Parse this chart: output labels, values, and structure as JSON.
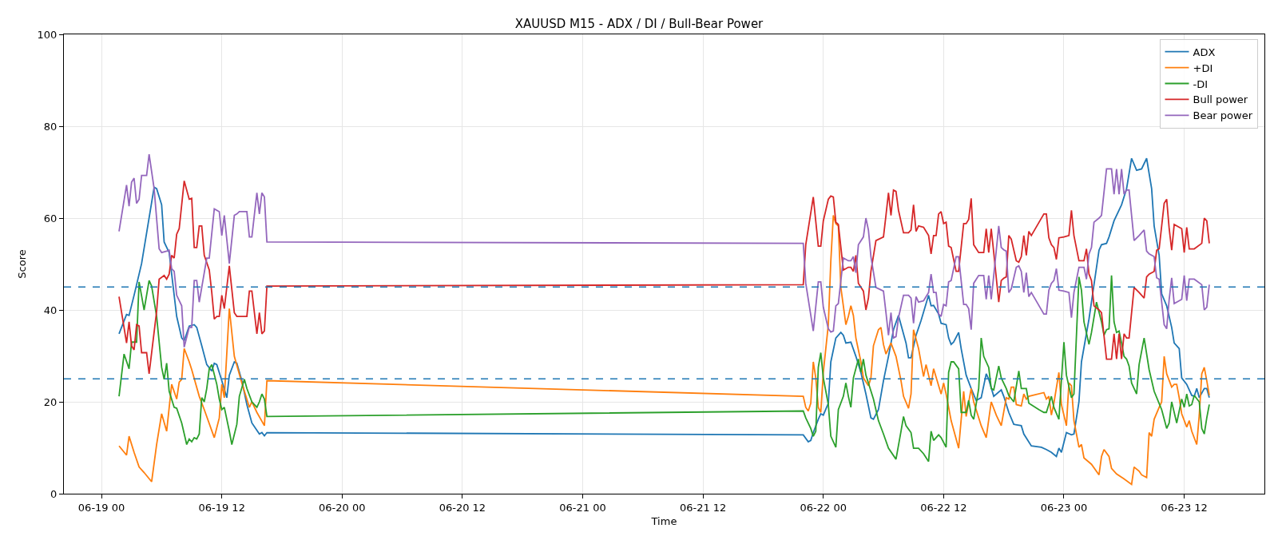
{
  "chart_data": {
    "type": "line",
    "title": "XAUUSD M15 - ADX / DI / Bull-Bear Power",
    "xlabel": "Time",
    "ylabel": "Score",
    "xlim": [
      "--06-18T20:15",
      "--06-23T20:00"
    ],
    "xticks": [
      {
        "value": "--06-19T00:00",
        "label": "06-19 00"
      },
      {
        "value": "--06-19T12:00",
        "label": "06-19 12"
      },
      {
        "value": "--06-20T00:00",
        "label": "06-20 00"
      },
      {
        "value": "--06-20T12:00",
        "label": "06-20 12"
      },
      {
        "value": "--06-21T00:00",
        "label": "06-21 00"
      },
      {
        "value": "--06-21T12:00",
        "label": "06-21 12"
      },
      {
        "value": "--06-22T00:00",
        "label": "06-22 00"
      },
      {
        "value": "--06-22T12:00",
        "label": "06-22 12"
      },
      {
        "value": "--06-23T00:00",
        "label": "06-23 00"
      },
      {
        "value": "--06-23T12:00",
        "label": "06-23 12"
      }
    ],
    "ylim": [
      0,
      100
    ],
    "yticks": [
      0,
      20,
      40,
      60,
      80,
      100
    ],
    "grid": true,
    "legend": "top right",
    "ref_lines": [
      {
        "axis": "y",
        "value": 45,
        "color": "#1f77b4",
        "line_style": "dashed"
      },
      {
        "axis": "y",
        "value": 25,
        "color": "#1f77b4",
        "line_style": "dashed"
      }
    ],
    "series": [
      {
        "name": "ADX",
        "color": "#1f77b4",
        "x": [
          "--06-19T01:45",
          "--06-19T02:30",
          "--06-19T02:45",
          "--06-19T03:15",
          "--06-19T04:00",
          "--06-19T05:15",
          "--06-19T05:30",
          "--06-19T06:00",
          "--06-19T06:15",
          "--06-19T06:45",
          "--06-19T07:00",
          "--06-19T07:30",
          "--06-19T08:00",
          "--06-19T08:15",
          "--06-19T08:45",
          "--06-19T09:15",
          "--06-19T09:30",
          "--06-19T10:00",
          "--06-19T10:30",
          "--06-19T11:00",
          "--06-19T11:15",
          "--06-19T11:30",
          "--06-19T12:00",
          "--06-19T12:30",
          "--06-19T12:45",
          "--06-19T13:15",
          "--06-19T13:30",
          "--06-19T14:00",
          "--06-19T14:30",
          "--06-19T15:00",
          "--06-19T15:45",
          "--06-19T16:00",
          "--06-19T16:15",
          "--06-19T16:30",
          "--06-21T22:00",
          "--06-21T22:30",
          "--06-21T22:45",
          "--06-21T23:00",
          "--06-21T23:30",
          "--06-21T23:45",
          "--06-22T00:00",
          "--06-22T00:30",
          "--06-22T00:45",
          "--06-22T01:15",
          "--06-22T01:45",
          "--06-22T02:00",
          "--06-22T02:15",
          "--06-22T02:45",
          "--06-22T03:15",
          "--06-22T03:45",
          "--06-22T04:15",
          "--06-22T04:45",
          "--06-22T05:00",
          "--06-22T05:30",
          "--06-22T06:00",
          "--06-22T06:30",
          "--06-22T07:00",
          "--06-22T07:30",
          "--06-22T07:45",
          "--06-22T08:15",
          "--06-22T08:30",
          "--06-22T08:45",
          "--06-22T09:15",
          "--06-22T09:45",
          "--06-22T10:30",
          "--06-22T10:45",
          "--06-22T11:00",
          "--06-22T11:30",
          "--06-22T11:45",
          "--06-22T12:15",
          "--06-22T12:30",
          "--06-22T12:45",
          "--06-22T13:00",
          "--06-22T13:30",
          "--06-22T13:45",
          "--06-22T14:15",
          "--06-22T14:45",
          "--06-22T15:15",
          "--06-22T15:45",
          "--06-22T16:15",
          "--06-22T16:30",
          "--06-22T17:00",
          "--06-22T17:45",
          "--06-22T18:00",
          "--06-22T18:30",
          "--06-22T19:00",
          "--06-22T19:45",
          "--06-22T20:00",
          "--06-22T20:45",
          "--06-22T21:45",
          "--06-22T22:15",
          "--06-22T22:45",
          "--06-22T23:15",
          "--06-22T23:30",
          "--06-22T23:45",
          "--06-23T00:15",
          "--06-23T00:45",
          "--06-23T01:00",
          "--06-23T01:30",
          "--06-23T01:45",
          "--06-23T02:30",
          "--06-23T03:00",
          "--06-23T03:30",
          "--06-23T03:45",
          "--06-23T04:15",
          "--06-23T04:30",
          "--06-23T05:00",
          "--06-23T05:45",
          "--06-23T06:15",
          "--06-23T06:45",
          "--06-23T07:15",
          "--06-23T07:45",
          "--06-23T08:15",
          "--06-23T08:45",
          "--06-23T09:00",
          "--06-23T09:30",
          "--06-23T09:45",
          "--06-23T10:15",
          "--06-23T10:45",
          "--06-23T11:00",
          "--06-23T11:30",
          "--06-23T11:45",
          "--06-23T12:15",
          "--06-23T12:45",
          "--06-23T13:00",
          "--06-23T13:15",
          "--06-23T13:30",
          "--06-23T14:00",
          "--06-23T14:15",
          "--06-23T14:30"
        ],
        "values": [
          34.8,
          39.0,
          38.8,
          43.2,
          50.1,
          66.7,
          66.4,
          62.9,
          54.8,
          52.5,
          47.8,
          38.6,
          33.9,
          33.3,
          36.5,
          36.8,
          36.2,
          32.2,
          28.1,
          26.7,
          28.4,
          28.1,
          24.6,
          20.9,
          25.8,
          28.7,
          28.4,
          24.6,
          19.4,
          15.4,
          13.0,
          13.3,
          12.6,
          13.3,
          12.8,
          11.3,
          11.6,
          13.3,
          16.2,
          17.4,
          17.1,
          19.7,
          28.7,
          33.9,
          35.1,
          34.5,
          32.8,
          33.0,
          29.9,
          26.4,
          21.7,
          16.5,
          16.2,
          18.3,
          24.6,
          29.9,
          35.7,
          38.8,
          36.8,
          32.8,
          29.6,
          29.6,
          34.5,
          37.7,
          43.2,
          40.9,
          41.0,
          39.1,
          37.1,
          36.8,
          33.9,
          32.5,
          33.0,
          35.1,
          31.6,
          25.8,
          22.9,
          20.3,
          20.9,
          26.1,
          24.9,
          21.2,
          22.6,
          21.2,
          17.7,
          15.1,
          14.8,
          13.0,
          10.4,
          10.1,
          9.6,
          9.0,
          8.1,
          9.9,
          9.0,
          13.3,
          12.8,
          13.0,
          20.0,
          28.7,
          38.0,
          45.5,
          53.0,
          54.2,
          54.5,
          55.9,
          59.4,
          62.9,
          66.4,
          73.0,
          70.4,
          70.7,
          73.0,
          66.4,
          58.3,
          51.9,
          43.5,
          40.9,
          36.2,
          32.8,
          31.6,
          25.2,
          23.8,
          21.4,
          21.2,
          22.9,
          20.9,
          22.9,
          22.9,
          20.9
        ]
      },
      {
        "name": "+DI",
        "color": "#ff7f0e",
        "x": [
          "--06-19T01:45",
          "--06-19T02:30",
          "--06-19T02:45",
          "--06-19T03:15",
          "--06-19T03:45",
          "--06-19T04:15",
          "--06-19T05:00",
          "--06-19T05:30",
          "--06-19T06:00",
          "--06-19T06:30",
          "--06-19T07:00",
          "--06-19T07:30",
          "--06-19T07:45",
          "--06-19T08:00",
          "--06-19T08:15",
          "--06-19T08:45",
          "--06-19T09:00",
          "--06-19T09:45",
          "--06-19T10:15",
          "--06-19T11:15",
          "--06-19T11:45",
          "--06-19T12:00",
          "--06-19T12:15",
          "--06-19T12:45",
          "--06-19T13:15",
          "--06-19T14:00",
          "--06-19T14:45",
          "--06-19T15:00",
          "--06-19T15:30",
          "--06-19T16:15",
          "--06-19T16:30",
          "--06-21T22:00",
          "--06-21T22:15",
          "--06-21T22:30",
          "--06-21T22:45",
          "--06-21T23:00",
          "--06-21T23:15",
          "--06-21T23:30",
          "--06-21T23:45",
          "--06-22T00:00",
          "--06-22T00:30",
          "--06-22T00:45",
          "--06-22T01:00",
          "--06-22T01:15",
          "--06-22T01:30",
          "--06-22T01:45",
          "--06-22T02:15",
          "--06-22T02:30",
          "--06-22T02:45",
          "--06-22T03:00",
          "--06-22T03:15",
          "--06-22T03:45",
          "--06-22T04:00",
          "--06-22T04:30",
          "--06-22T04:45",
          "--06-22T05:00",
          "--06-22T05:30",
          "--06-22T05:45",
          "--06-22T06:00",
          "--06-22T06:15",
          "--06-22T06:45",
          "--06-22T07:15",
          "--06-22T07:45",
          "--06-22T08:00",
          "--06-22T08:30",
          "--06-22T08:45",
          "--06-22T09:00",
          "--06-22T09:30",
          "--06-22T10:00",
          "--06-22T10:15",
          "--06-22T10:45",
          "--06-22T11:00",
          "--06-22T11:45",
          "--06-22T12:00",
          "--06-22T12:15",
          "--06-22T12:45",
          "--06-22T13:30",
          "--06-22T14:00",
          "--06-22T14:15",
          "--06-22T14:45",
          "--06-22T15:00",
          "--06-22T15:45",
          "--06-22T16:15",
          "--06-22T16:45",
          "--06-22T17:15",
          "--06-22T17:45",
          "--06-22T18:15",
          "--06-22T18:30",
          "--06-22T18:45",
          "--06-22T19:00",
          "--06-22T19:15",
          "--06-22T19:45",
          "--06-22T20:00",
          "--06-22T20:15",
          "--06-22T20:30",
          "--06-22T22:00",
          "--06-22T22:15",
          "--06-22T22:30",
          "--06-22T22:45",
          "--06-22T23:00",
          "--06-22T23:30",
          "--06-22T23:45",
          "--06-23T00:15",
          "--06-23T00:30",
          "--06-23T00:45",
          "--06-23T01:00",
          "--06-23T01:30",
          "--06-23T01:45",
          "--06-23T02:00",
          "--06-23T02:45",
          "--06-23T03:30",
          "--06-23T03:45",
          "--06-23T04:00",
          "--06-23T04:30",
          "--06-23T04:45",
          "--06-23T05:15",
          "--06-23T06:00",
          "--06-23T06:45",
          "--06-23T07:00",
          "--06-23T07:30",
          "--06-23T07:45",
          "--06-23T08:15",
          "--06-23T08:30",
          "--06-23T08:45",
          "--06-23T09:00",
          "--06-23T09:30",
          "--06-23T09:45",
          "--06-23T10:00",
          "--06-23T10:15",
          "--06-23T10:45",
          "--06-23T11:00",
          "--06-23T11:15",
          "--06-23T11:30",
          "--06-23T11:45",
          "--06-23T12:15",
          "--06-23T12:30",
          "--06-23T12:45",
          "--06-23T13:15",
          "--06-23T13:30",
          "--06-23T13:45",
          "--06-23T14:00",
          "--06-23T14:15",
          "--06-23T14:30"
        ],
        "values": [
          10.4,
          8.4,
          12.5,
          9.0,
          5.8,
          4.6,
          2.6,
          10.7,
          17.4,
          13.6,
          23.8,
          20.6,
          24.3,
          24.9,
          31.6,
          28.7,
          27.0,
          21.2,
          18.3,
          12.2,
          16.5,
          23.8,
          20.9,
          40.3,
          29.9,
          24.1,
          18.8,
          20.0,
          17.7,
          14.8,
          24.6,
          21.2,
          18.8,
          18.0,
          19.7,
          28.7,
          25.2,
          18.8,
          17.7,
          26.4,
          36.8,
          50.7,
          60.6,
          58.8,
          58.3,
          44.9,
          36.8,
          38.6,
          40.9,
          38.8,
          33.9,
          28.7,
          25.2,
          23.5,
          25.2,
          32.2,
          35.7,
          36.2,
          32.5,
          30.4,
          32.8,
          29.9,
          24.6,
          21.2,
          18.6,
          21.7,
          35.7,
          31.6,
          25.5,
          28.1,
          23.5,
          27.2,
          21.7,
          24.1,
          21.7,
          15.9,
          9.9,
          22.3,
          16.8,
          22.9,
          20.0,
          14.8,
          12.2,
          20.0,
          17.1,
          14.8,
          20.9,
          20.6,
          23.2,
          23.2,
          19.4,
          19.1,
          21.7,
          20.6,
          21.2,
          22.0,
          20.6,
          21.2,
          17.1,
          19.7,
          26.4,
          19.4,
          14.8,
          24.1,
          23.5,
          15.9,
          10.1,
          10.7,
          7.8,
          6.4,
          4.1,
          8.1,
          9.6,
          8.1,
          5.5,
          4.3,
          3.2,
          2.0,
          5.8,
          4.9,
          4.1,
          3.5,
          13.3,
          12.5,
          16.2,
          18.8,
          20.0,
          29.9,
          26.1,
          23.2,
          23.8,
          23.8,
          20.9,
          17.4,
          14.5,
          15.9,
          13.6,
          10.7,
          17.1,
          26.1,
          27.5,
          24.6,
          21.4
        ]
      },
      {
        "name": "-DI",
        "color": "#2ca02c",
        "x": [
          "--06-19T01:45",
          "--06-19T02:15",
          "--06-19T02:45",
          "--06-19T03:00",
          "--06-19T03:30",
          "--06-19T03:45",
          "--06-19T04:15",
          "--06-19T04:45",
          "--06-19T05:00",
          "--06-19T05:30",
          "--06-19T06:00",
          "--06-19T06:15",
          "--06-19T06:30",
          "--06-19T06:45",
          "--06-19T07:15",
          "--06-19T07:30",
          "--06-19T08:00",
          "--06-19T08:30",
          "--06-19T08:45",
          "--06-19T09:00",
          "--06-19T09:15",
          "--06-19T09:30",
          "--06-19T09:45",
          "--06-19T10:00",
          "--06-19T10:15",
          "--06-19T10:30",
          "--06-19T10:45",
          "--06-19T11:00",
          "--06-19T11:30",
          "--06-19T11:45",
          "--06-19T12:00",
          "--06-19T12:15",
          "--06-19T12:45",
          "--06-19T13:00",
          "--06-19T13:30",
          "--06-19T13:45",
          "--06-19T14:15",
          "--06-19T14:30",
          "--06-19T15:00",
          "--06-19T15:30",
          "--06-19T15:45",
          "--06-19T16:00",
          "--06-19T16:15",
          "--06-19T16:30",
          "--06-21T22:00",
          "--06-21T22:15",
          "--06-21T22:45",
          "--06-21T23:00",
          "--06-21T23:15",
          "--06-21T23:30",
          "--06-21T23:45",
          "--06-22T00:00",
          "--06-22T00:30",
          "--06-22T00:45",
          "--06-22T01:15",
          "--06-22T01:30",
          "--06-22T02:00",
          "--06-22T02:15",
          "--06-22T02:30",
          "--06-22T02:45",
          "--06-22T03:00",
          "--06-22T03:30",
          "--06-22T03:45",
          "--06-22T04:00",
          "--06-22T04:15",
          "--06-22T04:30",
          "--06-22T05:00",
          "--06-22T05:30",
          "--06-22T06:00",
          "--06-22T06:30",
          "--06-22T07:15",
          "--06-22T07:45",
          "--06-22T08:00",
          "--06-22T08:15",
          "--06-22T08:45",
          "--06-22T09:00",
          "--06-22T09:30",
          "--06-22T10:00",
          "--06-22T10:30",
          "--06-22T10:45",
          "--06-22T11:00",
          "--06-22T11:30",
          "--06-22T11:45",
          "--06-22T12:15",
          "--06-22T12:30",
          "--06-22T12:45",
          "--06-22T13:00",
          "--06-22T13:30",
          "--06-22T13:45",
          "--06-22T14:15",
          "--06-22T14:30",
          "--06-22T14:45",
          "--06-22T15:00",
          "--06-22T15:30",
          "--06-22T15:45",
          "--06-22T16:00",
          "--06-22T16:30",
          "--06-22T16:45",
          "--06-22T17:00",
          "--06-22T17:30",
          "--06-22T17:45",
          "--06-22T18:15",
          "--06-22T18:30",
          "--06-22T19:00",
          "--06-22T19:30",
          "--06-22T19:45",
          "--06-22T20:15",
          "--06-22T20:30",
          "--06-22T21:30",
          "--06-22T22:00",
          "--06-22T22:15",
          "--06-22T22:45",
          "--06-22T23:00",
          "--06-22T23:30",
          "--06-23T00:00",
          "--06-23T00:15",
          "--06-23T00:45",
          "--06-23T01:00",
          "--06-23T01:30",
          "--06-23T01:45",
          "--06-23T02:00",
          "--06-23T02:30",
          "--06-23T02:45",
          "--06-23T03:15",
          "--06-23T03:45",
          "--06-23T04:00",
          "--06-23T04:15",
          "--06-23T04:30",
          "--06-23T04:45",
          "--06-23T05:00",
          "--06-23T05:15",
          "--06-23T05:30",
          "--06-23T05:45",
          "--06-23T06:00",
          "--06-23T06:15",
          "--06-23T06:30",
          "--06-23T06:45",
          "--06-23T07:15",
          "--06-23T07:30",
          "--06-23T08:00",
          "--06-23T08:30",
          "--06-23T09:00",
          "--06-23T09:45",
          "--06-23T10:15",
          "--06-23T10:30",
          "--06-23T10:45",
          "--06-23T11:15",
          "--06-23T11:45",
          "--06-23T12:00",
          "--06-23T12:15",
          "--06-23T12:30",
          "--06-23T12:45",
          "--06-23T13:00",
          "--06-23T13:30",
          "--06-23T13:45",
          "--06-23T14:00",
          "--06-23T14:15",
          "--06-23T14:30"
        ],
        "values": [
          21.2,
          30.4,
          27.2,
          33.0,
          33.0,
          46.1,
          40.0,
          46.4,
          45.2,
          38.6,
          27.5,
          24.9,
          28.4,
          22.3,
          18.8,
          18.6,
          15.4,
          10.7,
          11.9,
          11.3,
          12.2,
          11.9,
          13.0,
          20.9,
          20.0,
          22.9,
          27.2,
          28.1,
          23.8,
          20.6,
          18.3,
          18.8,
          13.6,
          10.7,
          15.1,
          21.2,
          24.9,
          22.9,
          20.0,
          18.8,
          20.0,
          21.7,
          20.6,
          16.8,
          18.0,
          16.5,
          14.2,
          12.5,
          13.6,
          27.5,
          30.7,
          25.2,
          19.4,
          12.5,
          10.1,
          18.3,
          21.2,
          24.1,
          21.2,
          18.8,
          25.2,
          29.3,
          26.4,
          29.3,
          25.8,
          24.1,
          20.6,
          15.9,
          13.0,
          9.9,
          7.5,
          13.6,
          16.8,
          14.8,
          13.3,
          9.9,
          9.9,
          8.7,
          7.0,
          13.6,
          11.6,
          12.8,
          12.2,
          10.1,
          26.4,
          28.7,
          28.7,
          27.2,
          17.7,
          17.7,
          20.3,
          17.1,
          16.2,
          22.9,
          33.9,
          29.9,
          27.5,
          22.9,
          22.6,
          27.8,
          25.2,
          22.9,
          21.4,
          20.0,
          26.7,
          22.9,
          22.9,
          19.7,
          18.3,
          17.7,
          17.7,
          21.2,
          18.8,
          16.2,
          33.0,
          25.8,
          20.9,
          21.7,
          47.2,
          44.3,
          37.4,
          32.5,
          35.1,
          41.7,
          37.4,
          34.5,
          35.7,
          35.9,
          47.5,
          37.4,
          35.1,
          35.4,
          32.8,
          29.9,
          29.3,
          27.8,
          24.1,
          21.7,
          28.1,
          33.9,
          27.0,
          22.3,
          18.3,
          14.2,
          15.4,
          20.0,
          15.4,
          20.6,
          18.8,
          21.7,
          19.1,
          19.4,
          21.4,
          20.0,
          14.2,
          13.0,
          16.5,
          19.4
        ]
      },
      {
        "name": "Bull power",
        "color": "#d62728",
        "x": [
          "--06-19T01:45",
          "--06-19T02:30",
          "--06-19T02:45",
          "--06-19T03:00",
          "--06-19T03:15",
          "--06-19T03:30",
          "--06-19T03:45",
          "--06-19T04:00",
          "--06-19T04:30",
          "--06-19T04:45",
          "--06-19T05:30",
          "--06-19T05:45",
          "--06-19T06:15",
          "--06-19T06:30",
          "--06-19T06:45",
          "--06-19T07:00",
          "--06-19T07:15",
          "--06-19T07:30",
          "--06-19T07:45",
          "--06-19T08:15",
          "--06-19T08:45",
          "--06-19T09:00",
          "--06-19T09:15",
          "--06-19T09:30",
          "--06-19T09:45",
          "--06-19T10:00",
          "--06-19T10:15",
          "--06-19T10:45",
          "--06-19T11:00",
          "--06-19T11:15",
          "--06-19T11:30",
          "--06-19T11:45",
          "--06-19T12:00",
          "--06-19T12:15",
          "--06-19T12:45",
          "--06-19T13:15",
          "--06-19T13:30",
          "--06-19T14:30",
          "--06-19T14:45",
          "--06-19T15:00",
          "--06-19T15:30",
          "--06-19T15:45",
          "--06-19T16:00",
          "--06-19T16:15",
          "--06-19T16:30",
          "--06-21T22:00",
          "--06-21T22:15",
          "--06-21T23:00",
          "--06-21T23:30",
          "--06-21T23:45",
          "--06-22T00:00",
          "--06-22T00:30",
          "--06-22T00:45",
          "--06-22T01:00",
          "--06-22T01:15",
          "--06-22T01:30",
          "--06-22T02:00",
          "--06-22T02:30",
          "--06-22T02:45",
          "--06-22T03:00",
          "--06-22T03:15",
          "--06-22T03:30",
          "--06-22T04:00",
          "--06-22T04:15",
          "--06-22T04:30",
          "--06-22T04:45",
          "--06-22T05:15",
          "--06-22T06:00",
          "--06-22T06:15",
          "--06-22T06:30",
          "--06-22T06:45",
          "--06-22T07:00",
          "--06-22T07:15",
          "--06-22T07:30",
          "--06-22T08:00",
          "--06-22T08:30",
          "--06-22T08:45",
          "--06-22T09:00",
          "--06-22T09:15",
          "--06-22T09:30",
          "--06-22T10:00",
          "--06-22T10:30",
          "--06-22T10:45",
          "--06-22T11:00",
          "--06-22T11:15",
          "--06-22T11:30",
          "--06-22T11:45",
          "--06-22T12:00",
          "--06-22T12:15",
          "--06-22T12:30",
          "--06-22T12:45",
          "--06-22T13:15",
          "--06-22T13:30",
          "--06-22T14:00",
          "--06-22T14:15",
          "--06-22T14:30",
          "--06-22T14:45",
          "--06-22T15:00",
          "--06-22T15:30",
          "--06-22T16:00",
          "--06-22T16:15",
          "--06-22T16:30",
          "--06-22T16:45",
          "--06-22T17:00",
          "--06-22T17:30",
          "--06-22T17:45",
          "--06-22T18:00",
          "--06-22T18:15",
          "--06-22T18:30",
          "--06-22T18:45",
          "--06-22T19:15",
          "--06-22T19:30",
          "--06-22T19:45",
          "--06-22T20:00",
          "--06-22T20:15",
          "--06-22T20:30",
          "--06-22T20:45",
          "--06-22T22:00",
          "--06-22T22:15",
          "--06-22T22:30",
          "--06-22T22:45",
          "--06-22T23:00",
          "--06-22T23:15",
          "--06-22T23:30",
          "--06-23T00:00",
          "--06-23T00:30",
          "--06-23T00:45",
          "--06-23T01:00",
          "--06-23T01:30",
          "--06-23T02:00",
          "--06-23T02:15",
          "--06-23T02:30",
          "--06-23T02:45",
          "--06-23T03:00",
          "--06-23T03:30",
          "--06-23T03:45",
          "--06-23T04:15",
          "--06-23T04:45",
          "--06-23T05:00",
          "--06-23T05:15",
          "--06-23T05:30",
          "--06-23T05:45",
          "--06-23T06:00",
          "--06-23T06:15",
          "--06-23T06:30",
          "--06-23T07:00",
          "--06-23T07:30",
          "--06-23T08:00",
          "--06-23T08:15",
          "--06-23T08:30",
          "--06-23T09:00",
          "--06-23T09:15",
          "--06-23T09:30",
          "--06-23T10:00",
          "--06-23T10:15",
          "--06-23T10:30",
          "--06-23T10:45",
          "--06-23T11:00",
          "--06-23T11:30",
          "--06-23T11:45",
          "--06-23T12:00",
          "--06-23T12:15",
          "--06-23T12:30",
          "--06-23T13:00",
          "--06-23T13:45",
          "--06-23T14:00",
          "--06-23T14:15",
          "--06-23T14:30"
        ],
        "values": [
          42.9,
          32.8,
          37.4,
          32.2,
          31.3,
          36.8,
          36.5,
          30.7,
          30.7,
          26.1,
          39.7,
          46.7,
          47.5,
          46.7,
          47.8,
          51.9,
          51.3,
          56.5,
          57.7,
          68.1,
          64.1,
          64.3,
          53.6,
          53.6,
          58.3,
          58.3,
          51.9,
          48.7,
          43.8,
          38.0,
          38.6,
          38.6,
          43.2,
          40.3,
          49.6,
          39.4,
          38.6,
          38.6,
          44.1,
          44.1,
          34.8,
          39.4,
          34.8,
          35.4,
          45.2,
          45.5,
          54.2,
          64.6,
          53.9,
          53.9,
          59.4,
          64.1,
          64.8,
          64.6,
          59.1,
          58.6,
          48.7,
          49.3,
          49.3,
          48.4,
          51.9,
          45.8,
          44.1,
          40.0,
          42.6,
          48.4,
          55.1,
          55.9,
          60.6,
          65.5,
          60.6,
          66.1,
          65.8,
          61.7,
          56.8,
          56.8,
          57.4,
          62.9,
          57.1,
          58.3,
          58.0,
          56.2,
          52.2,
          56.2,
          56.2,
          60.9,
          61.4,
          58.8,
          59.1,
          53.9,
          53.6,
          48.4,
          48.4,
          58.8,
          58.8,
          59.7,
          64.3,
          54.2,
          52.5,
          52.5,
          57.7,
          52.5,
          57.7,
          52.5,
          41.7,
          46.4,
          46.9,
          47.2,
          56.2,
          55.4,
          50.7,
          50.4,
          51.6,
          56.2,
          51.9,
          57.1,
          56.2,
          60.9,
          60.9,
          55.7,
          54.2,
          53.6,
          51.0,
          55.7,
          55.9,
          56.2,
          61.7,
          56.2,
          50.7,
          50.7,
          53.3,
          47.8,
          46.4,
          40.9,
          40.0,
          39.4,
          29.3,
          29.3,
          34.8,
          29.3,
          34.8,
          29.3,
          34.8,
          33.9,
          33.9,
          44.9,
          43.8,
          42.6,
          47.2,
          47.8,
          48.4,
          53.0,
          53.3,
          63.2,
          64.1,
          57.7,
          53.0,
          58.6,
          58.0,
          57.7,
          52.5,
          58.0,
          53.3,
          53.3,
          54.5,
          60.0,
          59.4,
          54.5
        ]
      },
      {
        "name": "Bear power",
        "color": "#9467bd",
        "x": [
          "--06-19T01:45",
          "--06-19T02:30",
          "--06-19T02:45",
          "--06-19T03:00",
          "--06-19T03:15",
          "--06-19T03:30",
          "--06-19T03:45",
          "--06-19T04:00",
          "--06-19T04:30",
          "--06-19T04:45",
          "--06-19T05:15",
          "--06-19T05:45",
          "--06-19T06:00",
          "--06-19T06:30",
          "--06-19T06:45",
          "--06-19T07:00",
          "--06-19T07:15",
          "--06-19T07:30",
          "--06-19T08:00",
          "--06-19T08:15",
          "--06-19T08:45",
          "--06-19T09:00",
          "--06-19T09:15",
          "--06-19T09:30",
          "--06-19T09:45",
          "--06-19T10:30",
          "--06-19T10:45",
          "--06-19T11:15",
          "--06-19T11:45",
          "--06-19T12:00",
          "--06-19T12:15",
          "--06-19T12:45",
          "--06-19T13:15",
          "--06-19T13:30",
          "--06-19T13:45",
          "--06-19T14:30",
          "--06-19T14:45",
          "--06-19T15:00",
          "--06-19T15:30",
          "--06-19T15:45",
          "--06-19T16:00",
          "--06-19T16:15",
          "--06-19T16:30",
          "--06-21T22:00",
          "--06-21T22:15",
          "--06-21T23:00",
          "--06-21T23:30",
          "--06-21T23:45",
          "--06-22T00:00",
          "--06-22T00:30",
          "--06-22T00:45",
          "--06-22T01:00",
          "--06-22T01:15",
          "--06-22T01:30",
          "--06-22T02:00",
          "--06-22T02:30",
          "--06-22T02:45",
          "--06-22T03:00",
          "--06-22T03:15",
          "--06-22T03:30",
          "--06-22T04:00",
          "--06-22T04:15",
          "--06-22T04:30",
          "--06-22T04:45",
          "--06-22T05:15",
          "--06-22T06:00",
          "--06-22T06:15",
          "--06-22T06:30",
          "--06-22T06:45",
          "--06-22T07:00",
          "--06-22T07:15",
          "--06-22T07:30",
          "--06-22T08:00",
          "--06-22T08:30",
          "--06-22T08:45",
          "--06-22T09:00",
          "--06-22T09:15",
          "--06-22T09:30",
          "--06-22T10:00",
          "--06-22T10:30",
          "--06-22T10:45",
          "--06-22T11:00",
          "--06-22T11:15",
          "--06-22T11:30",
          "--06-22T11:45",
          "--06-22T12:00",
          "--06-22T12:15",
          "--06-22T12:30",
          "--06-22T12:45",
          "--06-22T13:15",
          "--06-22T13:30",
          "--06-22T14:00",
          "--06-22T14:15",
          "--06-22T14:30",
          "--06-22T14:45",
          "--06-22T15:00",
          "--06-22T15:30",
          "--06-22T16:00",
          "--06-22T16:15",
          "--06-22T16:30",
          "--06-22T16:45",
          "--06-22T17:00",
          "--06-22T17:30",
          "--06-22T17:45",
          "--06-22T18:00",
          "--06-22T18:15",
          "--06-22T18:30",
          "--06-22T18:45",
          "--06-22T19:15",
          "--06-22T19:30",
          "--06-22T19:45",
          "--06-22T20:00",
          "--06-22T20:15",
          "--06-22T20:30",
          "--06-22T20:45",
          "--06-22T22:00",
          "--06-22T22:15",
          "--06-22T22:30",
          "--06-22T22:45",
          "--06-22T23:00",
          "--06-22T23:15",
          "--06-22T23:30",
          "--06-23T00:00",
          "--06-23T00:30",
          "--06-23T00:45",
          "--06-23T01:00",
          "--06-23T01:30",
          "--06-23T02:00",
          "--06-23T02:15",
          "--06-23T02:30",
          "--06-23T02:45",
          "--06-23T03:00",
          "--06-23T03:30",
          "--06-23T03:45",
          "--06-23T04:15",
          "--06-23T04:45",
          "--06-23T05:00",
          "--06-23T05:15",
          "--06-23T05:30",
          "--06-23T05:45",
          "--06-23T06:00",
          "--06-23T06:15",
          "--06-23T06:30",
          "--06-23T07:00",
          "--06-23T07:30",
          "--06-23T08:00",
          "--06-23T08:15",
          "--06-23T08:30",
          "--06-23T09:00",
          "--06-23T09:15",
          "--06-23T09:30",
          "--06-23T10:00",
          "--06-23T10:15",
          "--06-23T10:30",
          "--06-23T10:45",
          "--06-23T11:00",
          "--06-23T11:30",
          "--06-23T11:45",
          "--06-23T12:00",
          "--06-23T12:15",
          "--06-23T12:30",
          "--06-23T13:00",
          "--06-23T13:45",
          "--06-23T14:00",
          "--06-23T14:15",
          "--06-23T14:30"
        ],
        "values": [
          57.1,
          67.2,
          62.6,
          67.8,
          68.7,
          63.2,
          64.1,
          69.3,
          69.3,
          73.9,
          66.4,
          53.3,
          52.5,
          52.8,
          53.0,
          49.0,
          48.4,
          43.2,
          40.9,
          31.9,
          36.2,
          36.2,
          46.4,
          46.4,
          41.7,
          51.3,
          51.3,
          62.0,
          61.4,
          56.2,
          60.6,
          50.1,
          60.6,
          60.9,
          61.4,
          61.4,
          55.9,
          55.9,
          65.5,
          60.9,
          65.5,
          64.6,
          54.8,
          54.5,
          45.8,
          35.4,
          46.1,
          46.1,
          40.6,
          35.9,
          35.2,
          35.4,
          40.9,
          41.4,
          51.3,
          50.7,
          50.7,
          51.6,
          48.1,
          54.2,
          55.9,
          60.0,
          57.4,
          51.6,
          44.9,
          44.1,
          39.4,
          34.5,
          39.4,
          33.9,
          34.2,
          38.3,
          43.2,
          43.2,
          42.6,
          37.1,
          42.9,
          41.7,
          42.0,
          43.8,
          47.8,
          43.8,
          43.8,
          39.1,
          38.6,
          41.2,
          40.9,
          46.1,
          46.4,
          51.6,
          51.6,
          41.2,
          41.2,
          40.3,
          35.7,
          45.8,
          47.5,
          47.5,
          42.3,
          47.5,
          42.3,
          47.5,
          58.3,
          53.6,
          53.1,
          52.8,
          43.8,
          44.6,
          49.3,
          49.6,
          48.4,
          43.8,
          48.1,
          42.9,
          43.8,
          39.1,
          39.1,
          44.3,
          45.8,
          46.4,
          49.0,
          44.3,
          44.1,
          43.8,
          38.3,
          43.8,
          49.3,
          49.3,
          46.7,
          52.2,
          53.6,
          59.1,
          60.0,
          60.6,
          70.7,
          70.7,
          65.2,
          70.7,
          65.2,
          70.7,
          65.2,
          66.1,
          66.1,
          55.1,
          56.2,
          57.4,
          52.8,
          52.2,
          51.6,
          47.0,
          46.7,
          36.8,
          35.9,
          42.3,
          47.0,
          41.4,
          42.0,
          42.3,
          47.5,
          42.0,
          46.7,
          46.7,
          45.5,
          40.0,
          40.6,
          45.5
        ]
      }
    ]
  }
}
